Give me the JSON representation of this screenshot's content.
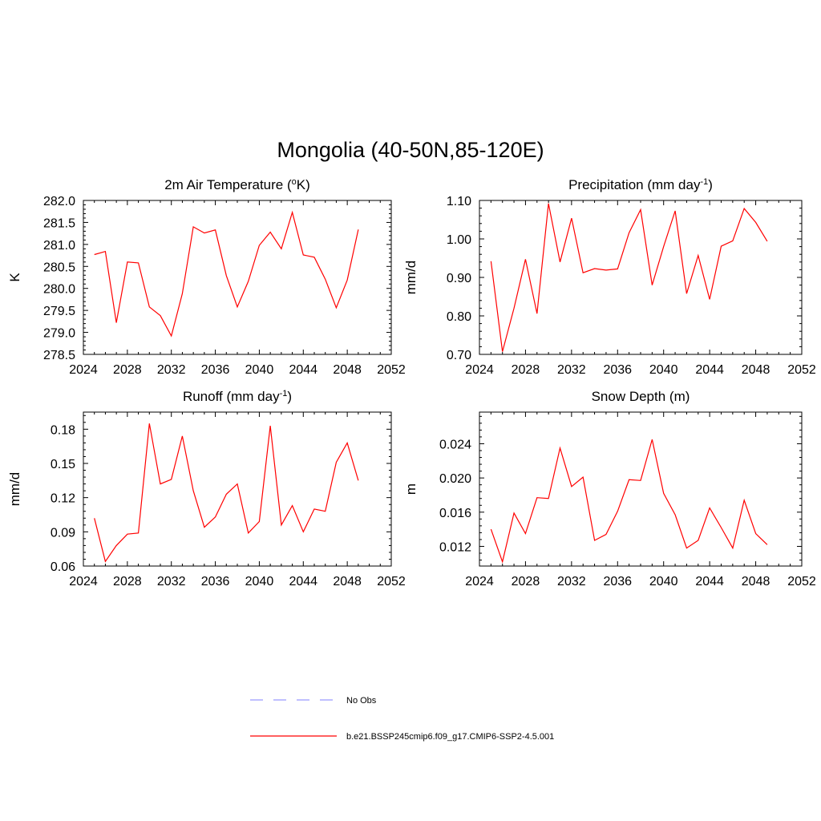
{
  "figure_title": "Mongolia (40-50N,85-120E)",
  "colors": {
    "model": "#ff0000",
    "obs": "#9999ff",
    "axis": "#000000"
  },
  "legend": {
    "items": [
      {
        "label": "No Obs",
        "style": "dashed",
        "color": "#9999ff"
      },
      {
        "label": "b.e21.BSSP245cmip6.f09_g17.CMIP6-SSP2-4.5.001",
        "style": "solid",
        "color": "#ff0000"
      }
    ]
  },
  "chart_data": [
    {
      "type": "line",
      "title": "2m Air Temperature (",
      "title_sup": "o",
      "title_after": "K)",
      "ylabel": "K",
      "xlim": [
        2024,
        2052
      ],
      "xticks": [
        2024,
        2028,
        2032,
        2036,
        2040,
        2044,
        2048,
        2052
      ],
      "ylim": [
        278.5,
        282.0
      ],
      "yticks": [
        278.5,
        279.0,
        279.5,
        280.0,
        280.5,
        281.0,
        281.5,
        282.0
      ],
      "yfmt": 1,
      "x": [
        2025,
        2026,
        2027,
        2028,
        2029,
        2030,
        2031,
        2032,
        2033,
        2034,
        2035,
        2036,
        2037,
        2038,
        2039,
        2040,
        2041,
        2042,
        2043,
        2044,
        2045,
        2046,
        2047,
        2048,
        2049
      ],
      "series": [
        {
          "values": [
            280.77,
            280.84,
            279.22,
            280.6,
            280.58,
            279.58,
            279.38,
            278.92,
            279.88,
            281.4,
            281.26,
            281.33,
            280.29,
            279.58,
            280.16,
            280.98,
            281.28,
            280.9,
            281.73,
            280.76,
            280.71,
            280.21,
            279.56,
            280.19,
            281.34
          ]
        }
      ]
    },
    {
      "type": "line",
      "title": "Precipitation (mm day",
      "title_sup": "-1",
      "title_after": ")",
      "ylabel": "mm/d",
      "xlim": [
        2024,
        2052
      ],
      "xticks": [
        2024,
        2028,
        2032,
        2036,
        2040,
        2044,
        2048,
        2052
      ],
      "ylim": [
        0.7,
        1.1
      ],
      "yticks": [
        0.7,
        0.8,
        0.9,
        1.0,
        1.1
      ],
      "yfmt": 2,
      "x": [
        2025,
        2026,
        2027,
        2028,
        2029,
        2030,
        2031,
        2032,
        2033,
        2034,
        2035,
        2036,
        2037,
        2038,
        2039,
        2040,
        2041,
        2042,
        2043,
        2044,
        2045,
        2046,
        2047,
        2048,
        2049
      ],
      "series": [
        {
          "values": [
            0.942,
            0.707,
            0.82,
            0.947,
            0.806,
            1.092,
            0.94,
            1.054,
            0.912,
            0.923,
            0.919,
            0.922,
            1.016,
            1.076,
            0.88,
            0.98,
            1.073,
            0.858,
            0.957,
            0.843,
            0.981,
            0.995,
            1.079,
            1.043,
            0.994
          ]
        }
      ]
    },
    {
      "type": "line",
      "title": "Runoff (mm day",
      "title_sup": "-1",
      "title_after": ")",
      "ylabel": "mm/d",
      "xlim": [
        2024,
        2052
      ],
      "xticks": [
        2024,
        2028,
        2032,
        2036,
        2040,
        2044,
        2048,
        2052
      ],
      "ylim": [
        0.06,
        0.195
      ],
      "yticks": [
        0.06,
        0.09,
        0.12,
        0.15,
        0.18
      ],
      "yfmt": 2,
      "x": [
        2025,
        2026,
        2027,
        2028,
        2029,
        2030,
        2031,
        2032,
        2033,
        2034,
        2035,
        2036,
        2037,
        2038,
        2039,
        2040,
        2041,
        2042,
        2043,
        2044,
        2045,
        2046,
        2047,
        2048,
        2049
      ],
      "series": [
        {
          "values": [
            0.102,
            0.064,
            0.078,
            0.088,
            0.089,
            0.185,
            0.132,
            0.136,
            0.174,
            0.126,
            0.094,
            0.103,
            0.123,
            0.132,
            0.089,
            0.099,
            0.183,
            0.096,
            0.113,
            0.09,
            0.11,
            0.108,
            0.151,
            0.168,
            0.135
          ]
        }
      ]
    },
    {
      "type": "line",
      "title": "Snow Depth (m)",
      "title_sup": "",
      "title_after": "",
      "ylabel": "m",
      "xlim": [
        2024,
        2052
      ],
      "xticks": [
        2024,
        2028,
        2032,
        2036,
        2040,
        2044,
        2048,
        2052
      ],
      "ylim": [
        0.0097,
        0.0277
      ],
      "yticks": [
        0.012,
        0.016,
        0.02,
        0.024
      ],
      "yfmt": 3,
      "x": [
        2025,
        2026,
        2027,
        2028,
        2029,
        2030,
        2031,
        2032,
        2033,
        2034,
        2035,
        2036,
        2037,
        2038,
        2039,
        2040,
        2041,
        2042,
        2043,
        2044,
        2045,
        2046,
        2047,
        2048,
        2049
      ],
      "series": [
        {
          "values": [
            0.014,
            0.0102,
            0.0159,
            0.0135,
            0.0177,
            0.0176,
            0.0235,
            0.019,
            0.0201,
            0.0127,
            0.0134,
            0.0161,
            0.0198,
            0.0197,
            0.0245,
            0.0182,
            0.0157,
            0.0118,
            0.0127,
            0.0165,
            0.0142,
            0.0118,
            0.0174,
            0.0135,
            0.0122
          ]
        }
      ]
    }
  ]
}
